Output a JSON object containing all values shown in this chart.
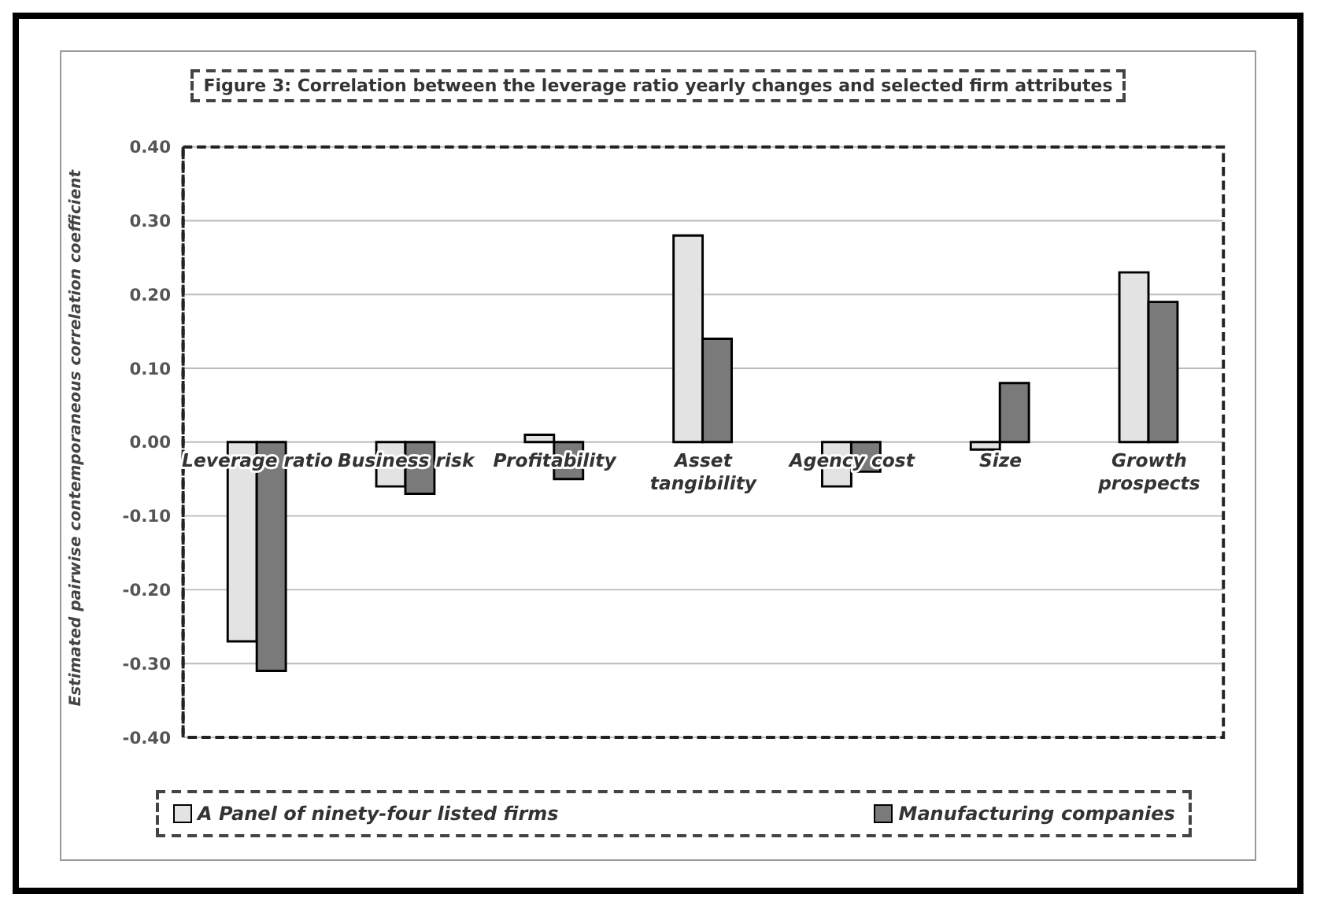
{
  "chart_data": {
    "type": "bar",
    "title": "Figure 3: Correlation between the leverage ratio yearly changes and selected  firm attributes",
    "ylabel": "Estimated pairwise contemporaneous correlation coefficient",
    "categories": [
      "Leverage ratio",
      "Business risk",
      "Profitability",
      "Asset tangibility",
      "Agency cost",
      "Size",
      "Growth prospects"
    ],
    "series": [
      {
        "name": "A Panel of ninety-four listed firms",
        "color": "#e3e3e3",
        "values": [
          -0.27,
          -0.06,
          0.01,
          0.28,
          -0.06,
          -0.01,
          0.23
        ]
      },
      {
        "name": "Manufacturing companies",
        "color": "#7a7a7a",
        "values": [
          -0.31,
          -0.07,
          -0.05,
          0.14,
          -0.04,
          0.08,
          0.19
        ]
      }
    ],
    "ylim": [
      -0.4,
      0.4
    ],
    "yticks": [
      {
        "value": -0.4,
        "label": "-0.40"
      },
      {
        "value": -0.3,
        "label": "-0.30"
      },
      {
        "value": -0.2,
        "label": "-0.20"
      },
      {
        "value": -0.1,
        "label": "-0.10"
      },
      {
        "value": 0,
        "label": "0.00"
      },
      {
        "value": 0.1,
        "label": "0.10"
      },
      {
        "value": 0.2,
        "label": "0.20"
      },
      {
        "value": 0.3,
        "label": "0.30"
      },
      {
        "value": 0.4,
        "label": "0.40"
      }
    ],
    "grid": "y",
    "legend": "bottom"
  }
}
